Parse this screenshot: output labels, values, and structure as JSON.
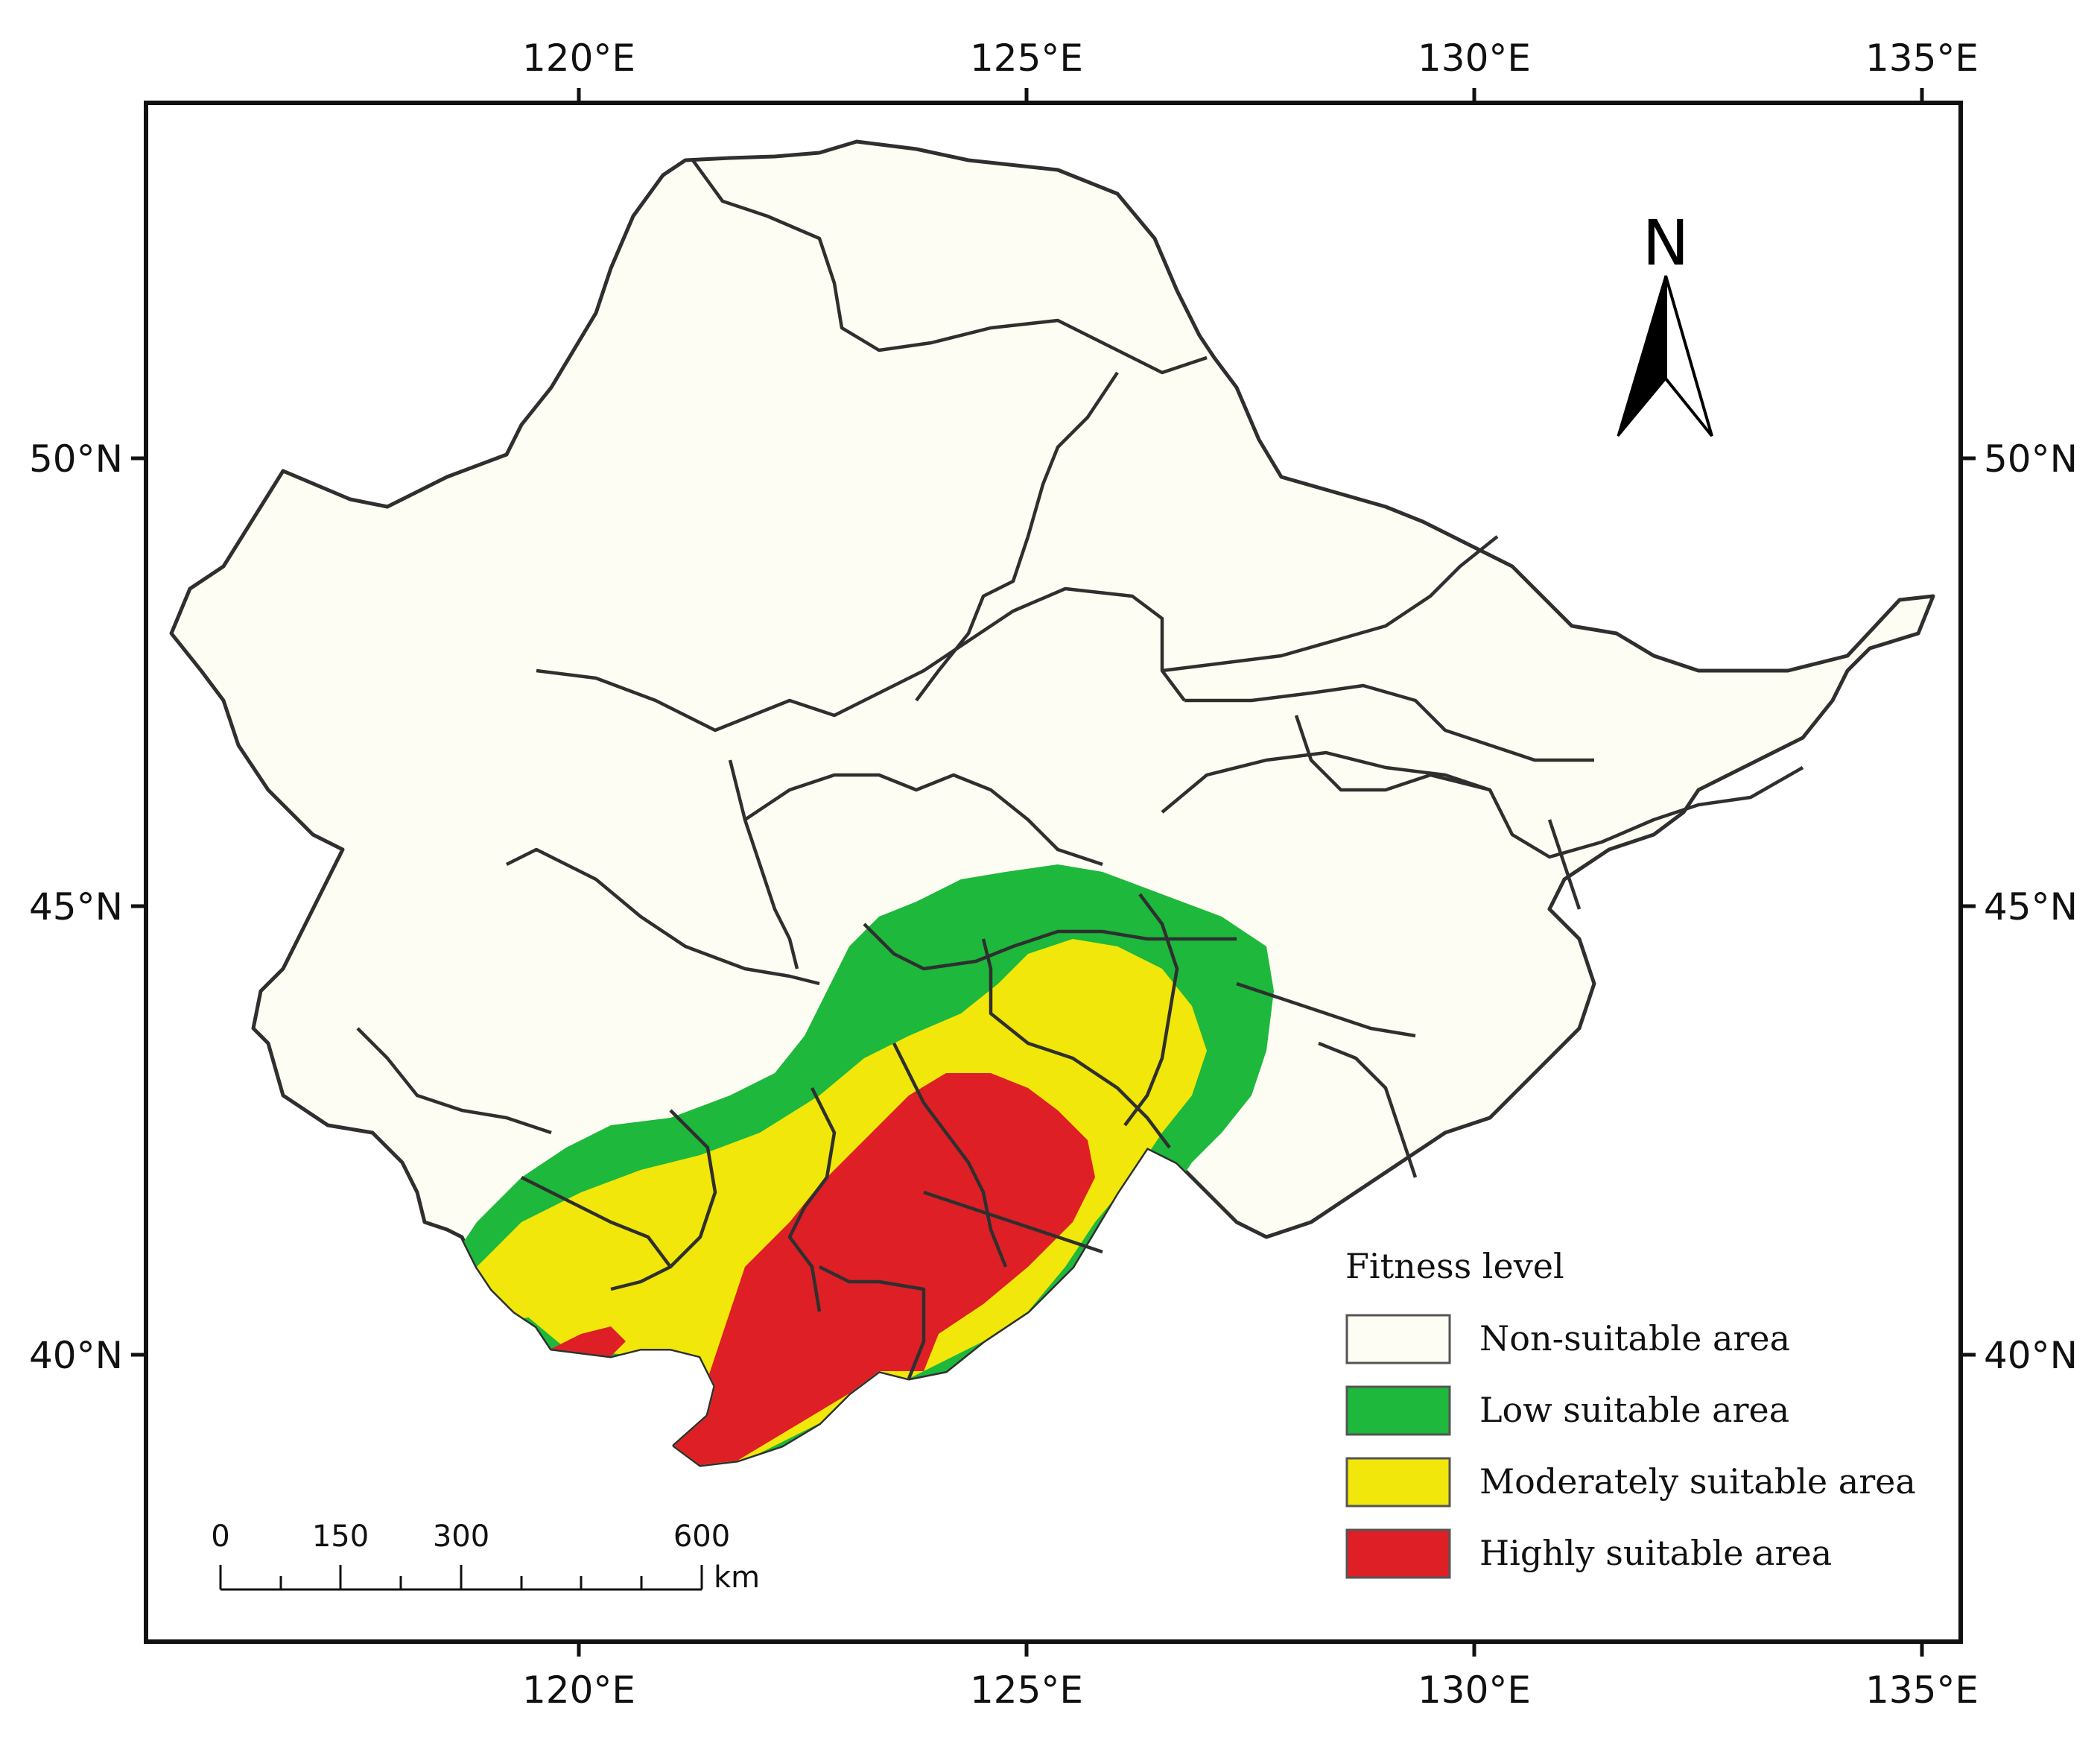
{
  "map": {
    "lon_ticks": [
      "120°E",
      "125°E",
      "130°E",
      "135°E"
    ],
    "lat_ticks": [
      "50°N",
      "45°N",
      "40°N"
    ],
    "north_label": "N",
    "legend": {
      "title": "Fitness level",
      "items": [
        {
          "label": "Non-suitable area",
          "color": "#fefdf3"
        },
        {
          "label": "Low suitable area",
          "color": "#1db83c"
        },
        {
          "label": "Moderately suitable area",
          "color": "#f1e70a"
        },
        {
          "label": "Highly suitable area",
          "color": "#de1f26"
        }
      ]
    },
    "scale_bar": {
      "labels": [
        "0",
        "150",
        "300",
        "600"
      ],
      "unit": "km"
    }
  }
}
